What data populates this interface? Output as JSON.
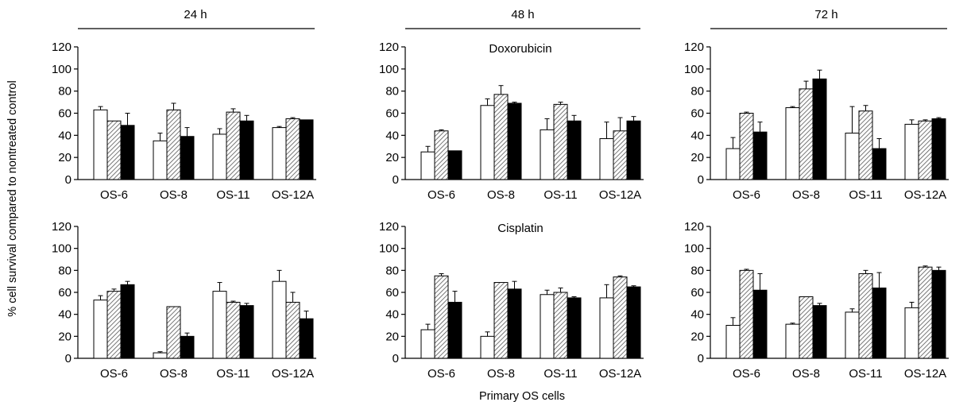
{
  "figure": {
    "ylabel": "% cell survival compared to nontreated control",
    "xlabel": "Primary OS cells",
    "time_labels": [
      "24 h",
      "48 h",
      "72 h"
    ],
    "drug_labels": [
      "Doxorubicin",
      "Cisplatin"
    ],
    "colors": {
      "bar_fill_1": "#ffffff",
      "bar_fill_3": "#000000",
      "hatch": "#555555",
      "axis": "#000000"
    }
  },
  "chart_data": [
    {
      "type": "bar",
      "drug": "Doxorubicin",
      "time": "24 h",
      "categories": [
        "OS-6",
        "OS-8",
        "OS-11",
        "OS-12A"
      ],
      "series": [
        {
          "values": [
            63,
            35,
            41,
            47
          ],
          "errors": [
            3,
            7,
            5,
            1
          ]
        },
        {
          "values": [
            53,
            63,
            61,
            55
          ],
          "errors": [
            0,
            6,
            3,
            1
          ]
        },
        {
          "values": [
            49,
            39,
            53,
            54
          ],
          "errors": [
            11,
            8,
            5,
            0
          ]
        }
      ],
      "ylim": [
        0,
        120
      ],
      "yticks": [
        0,
        20,
        40,
        60,
        80,
        100,
        120
      ]
    },
    {
      "type": "bar",
      "drug": "Doxorubicin",
      "time": "48 h",
      "categories": [
        "OS-6",
        "OS-8",
        "OS-11",
        "OS-12A"
      ],
      "series": [
        {
          "values": [
            25,
            67,
            45,
            37
          ],
          "errors": [
            5,
            6,
            10,
            15
          ]
        },
        {
          "values": [
            44,
            77,
            68,
            44
          ],
          "errors": [
            1,
            8,
            2,
            12
          ]
        },
        {
          "values": [
            26,
            69,
            53,
            53
          ],
          "errors": [
            0,
            1,
            5,
            4
          ]
        }
      ],
      "ylim": [
        0,
        120
      ],
      "yticks": [
        0,
        20,
        40,
        60,
        80,
        100,
        120
      ]
    },
    {
      "type": "bar",
      "drug": "Doxorubicin",
      "time": "72 h",
      "categories": [
        "OS-6",
        "OS-8",
        "OS-11",
        "OS-12A"
      ],
      "series": [
        {
          "values": [
            28,
            65,
            42,
            50
          ],
          "errors": [
            10,
            1,
            24,
            4
          ]
        },
        {
          "values": [
            60,
            82,
            62,
            53
          ],
          "errors": [
            1,
            7,
            5,
            1
          ]
        },
        {
          "values": [
            43,
            91,
            28,
            55
          ],
          "errors": [
            9,
            8,
            9,
            1
          ]
        }
      ],
      "ylim": [
        0,
        120
      ],
      "yticks": [
        0,
        20,
        40,
        60,
        80,
        100,
        120
      ]
    },
    {
      "type": "bar",
      "drug": "Cisplatin",
      "time": "24 h",
      "categories": [
        "OS-6",
        "OS-8",
        "OS-11",
        "OS-12A"
      ],
      "series": [
        {
          "values": [
            53,
            5,
            61,
            70
          ],
          "errors": [
            4,
            1,
            8,
            10
          ]
        },
        {
          "values": [
            61,
            47,
            51,
            51
          ],
          "errors": [
            2,
            0,
            1,
            9
          ]
        },
        {
          "values": [
            67,
            20,
            48,
            36
          ],
          "errors": [
            3,
            3,
            2,
            7
          ]
        }
      ],
      "ylim": [
        0,
        120
      ],
      "yticks": [
        0,
        20,
        40,
        60,
        80,
        100,
        120
      ]
    },
    {
      "type": "bar",
      "drug": "Cisplatin",
      "time": "48 h",
      "categories": [
        "OS-6",
        "OS-8",
        "OS-11",
        "OS-12A"
      ],
      "series": [
        {
          "values": [
            26,
            20,
            58,
            55
          ],
          "errors": [
            5,
            4,
            4,
            12
          ]
        },
        {
          "values": [
            75,
            69,
            60,
            74
          ],
          "errors": [
            2,
            0,
            4,
            1
          ]
        },
        {
          "values": [
            51,
            63,
            55,
            65
          ],
          "errors": [
            10,
            7,
            1,
            1
          ]
        }
      ],
      "ylim": [
        0,
        120
      ],
      "yticks": [
        0,
        20,
        40,
        60,
        80,
        100,
        120
      ]
    },
    {
      "type": "bar",
      "drug": "Cisplatin",
      "time": "72 h",
      "categories": [
        "OS-6",
        "OS-8",
        "OS-11",
        "OS-12A"
      ],
      "series": [
        {
          "values": [
            30,
            31,
            42,
            46
          ],
          "errors": [
            7,
            1,
            3,
            5
          ]
        },
        {
          "values": [
            80,
            56,
            77,
            83
          ],
          "errors": [
            1,
            0,
            3,
            1
          ]
        },
        {
          "values": [
            62,
            48,
            64,
            80
          ],
          "errors": [
            15,
            2,
            14,
            3
          ]
        }
      ],
      "ylim": [
        0,
        120
      ],
      "yticks": [
        0,
        20,
        40,
        60,
        80,
        100,
        120
      ]
    }
  ]
}
